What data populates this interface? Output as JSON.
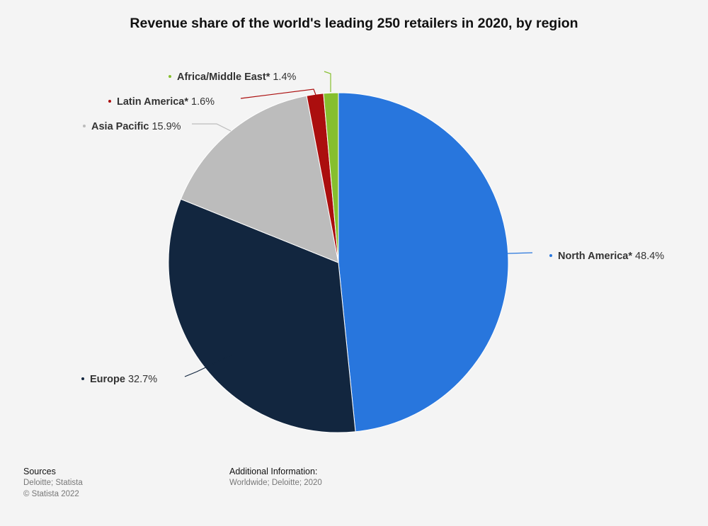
{
  "chart_data": {
    "type": "pie",
    "title": "Revenue share of the world's leading 250 retailers in 2020, by region",
    "unit": "%",
    "slices": [
      {
        "label": "North America*",
        "value": 48.4,
        "value_text": "48.4%",
        "color": "#2876dd"
      },
      {
        "label": "Europe",
        "value": 32.7,
        "value_text": "32.7%",
        "color": "#12263f"
      },
      {
        "label": "Asia Pacific",
        "value": 15.9,
        "value_text": "15.9%",
        "color": "#bcbcbc"
      },
      {
        "label": "Latin America*",
        "value": 1.6,
        "value_text": "1.6%",
        "color": "#ab0e0e"
      },
      {
        "label": "Africa/Middle East*",
        "value": 1.4,
        "value_text": "1.4%",
        "color": "#86bf2e"
      }
    ]
  },
  "footer": {
    "sources_heading": "Sources",
    "sources_line1": "Deloitte; Statista",
    "sources_line2": "© Statista 2022",
    "additional_heading": "Additional Information:",
    "additional_line1": "Worldwide; Deloitte; 2020"
  }
}
